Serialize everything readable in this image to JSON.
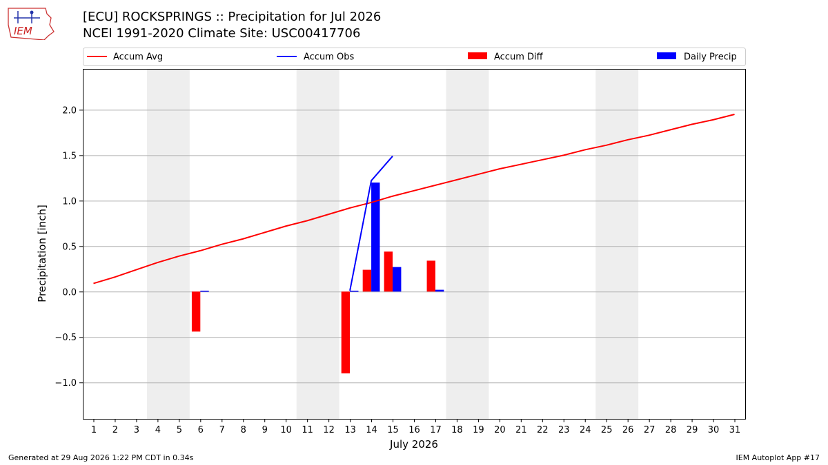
{
  "header": {
    "title_line1": "[ECU] ROCKSPRINGS :: Precipitation for Jul 2026",
    "title_line2": "NCEI 1991-2020 Climate Site: USC00417706"
  },
  "logo": {
    "text": "IEM"
  },
  "footer": {
    "generated": "Generated at 29 Aug 2026 1:22 PM CDT in 0.34s",
    "app": "IEM Autoplot App #17"
  },
  "colors": {
    "avg": "#ff0000",
    "obs": "#0000ff",
    "diff": "#ff0000",
    "daily": "#0000ff",
    "weekend": "#eeeeee"
  },
  "chart_data": {
    "type": "bar",
    "xlabel": "July 2026",
    "ylabel": "Precipitation [inch]",
    "xlim": [
      0.5,
      31.5
    ],
    "ylim": [
      -1.4,
      2.45
    ],
    "yticks": [
      -1.0,
      -0.5,
      0.0,
      0.5,
      1.0,
      1.5,
      2.0
    ],
    "ytick_labels": [
      "−1.0",
      "−0.5",
      "0.0",
      "0.5",
      "1.0",
      "1.5",
      "2.0"
    ],
    "days": [
      1,
      2,
      3,
      4,
      5,
      6,
      7,
      8,
      9,
      10,
      11,
      12,
      13,
      14,
      15,
      16,
      17,
      18,
      19,
      20,
      21,
      22,
      23,
      24,
      25,
      26,
      27,
      28,
      29,
      30,
      31
    ],
    "day_labels": [
      "1",
      "2",
      "3",
      "4",
      "5",
      "6",
      "7",
      "8",
      "9",
      "10",
      "11",
      "12",
      "13",
      "14",
      "15",
      "16",
      "17",
      "18",
      "19",
      "20",
      "21",
      "22",
      "23",
      "24",
      "25",
      "26",
      "27",
      "28",
      "29",
      "30",
      "31"
    ],
    "grid": "horizontal",
    "legend_placement": "top",
    "weekend_bands": [
      [
        3.5,
        5.5
      ],
      [
        10.5,
        12.5
      ],
      [
        17.5,
        19.5
      ],
      [
        24.5,
        26.5
      ]
    ],
    "legend": [
      "Accum Avg",
      "Accum Obs",
      "Accum Diff",
      "Daily Precip"
    ],
    "series": [
      {
        "name": "Accum Avg",
        "type": "line",
        "values": [
          0.09,
          0.16,
          0.24,
          0.32,
          0.39,
          0.45,
          0.52,
          0.58,
          0.65,
          0.72,
          0.78,
          0.85,
          0.92,
          0.98,
          1.05,
          1.11,
          1.17,
          1.23,
          1.29,
          1.35,
          1.4,
          1.45,
          1.5,
          1.56,
          1.61,
          1.67,
          1.72,
          1.78,
          1.84,
          1.89,
          1.95
        ]
      },
      {
        "name": "Accum Obs",
        "type": "line",
        "x": [
          13,
          14,
          15
        ],
        "values": [
          0.01,
          1.22,
          1.49
        ]
      },
      {
        "name": "Accum Diff",
        "type": "bar",
        "x": [
          6,
          13,
          14,
          15,
          17
        ],
        "values": [
          -0.44,
          -0.9,
          0.24,
          0.44,
          0.34
        ]
      },
      {
        "name": "Daily Precip",
        "type": "bar",
        "x": [
          6,
          13,
          14,
          15,
          17
        ],
        "values": [
          0.01,
          0.01,
          1.2,
          0.27,
          0.02
        ]
      }
    ]
  }
}
